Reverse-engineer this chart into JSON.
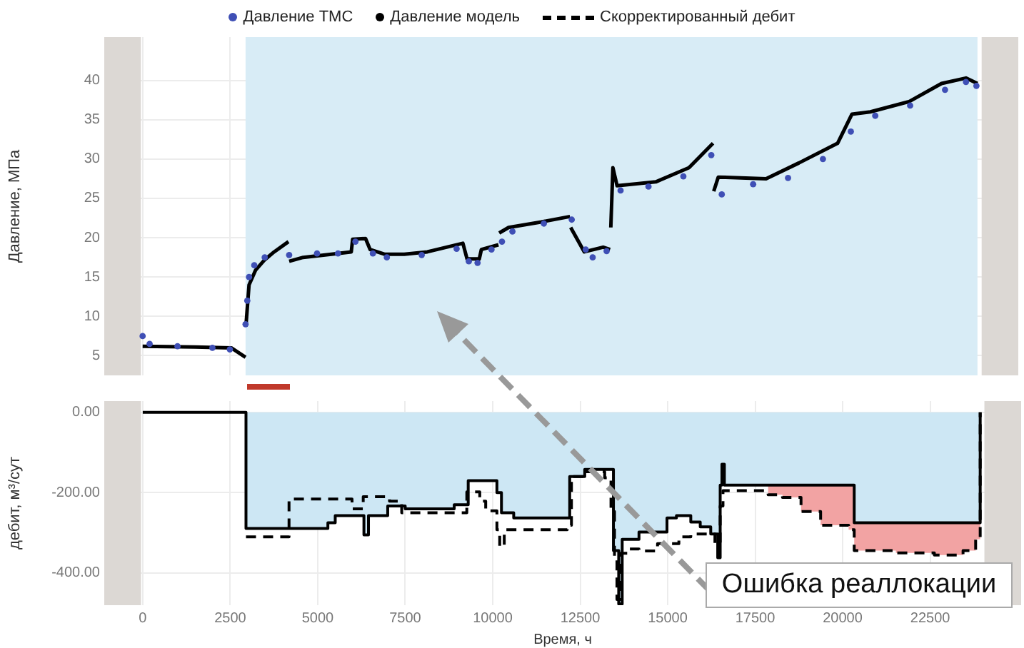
{
  "chart_data": [
    {
      "type": "line",
      "ylabel": "Давление, МПа",
      "xlim": [
        -1100,
        25100
      ],
      "ylim": [
        2.5,
        45.5
      ],
      "xticks": [
        0,
        2500,
        5000,
        7500,
        10000,
        12500,
        15000,
        17500,
        20000,
        22500
      ],
      "yticks": [
        5,
        10,
        15,
        20,
        25,
        30,
        35,
        40
      ],
      "tick_labels": "y",
      "grid": true,
      "legend": "top",
      "bands": [
        {
          "axis": "x",
          "from": -1100,
          "to": -50,
          "color": "#dcd8d4"
        },
        {
          "axis": "x",
          "from": 2950,
          "to": 23930,
          "color": "#d8ecf6"
        },
        {
          "axis": "x",
          "from": 24050,
          "to": 25100,
          "color": "#dcd8d4"
        }
      ],
      "series": [
        {
          "name": "Давление ТМС",
          "type": "scatter",
          "marker": "circle",
          "color": "#3f4fb5",
          "x": [
            0,
            200,
            1000,
            2000,
            2500,
            2950,
            3000,
            3050,
            3200,
            3500,
            4200,
            5000,
            5600,
            6100,
            6600,
            7000,
            8000,
            9000,
            9350,
            9600,
            10000,
            10300,
            10600,
            11500,
            12300,
            12700,
            12900,
            13300,
            13700,
            14500,
            15500,
            16300,
            16600,
            17500,
            18500,
            19500,
            20300,
            21000,
            22000,
            23000,
            23600,
            23900
          ],
          "values": [
            7.5,
            6.5,
            6.2,
            6,
            5.8,
            9,
            12,
            15,
            16.5,
            17.5,
            17.8,
            18,
            18,
            19.5,
            18,
            17.5,
            17.8,
            18.6,
            17,
            16.8,
            18.5,
            19.5,
            20.8,
            21.8,
            22.3,
            18.5,
            17.5,
            18.3,
            26,
            26.5,
            27.8,
            30.5,
            25.5,
            26.8,
            27.6,
            30,
            33.5,
            35.5,
            36.8,
            38.8,
            39.8,
            39.3
          ]
        },
        {
          "name": "Давление модель",
          "marker": "none",
          "color": "#000000",
          "x": [
            0,
            1500,
            2540,
            2950,
            2955,
            2960,
            3050,
            3240,
            3500,
            3770,
            4180,
            4190,
            4200,
            4600,
            5410,
            5980,
            6020,
            6390,
            6520,
            6930,
            7500,
            8160,
            9180,
            9300,
            9650,
            9710,
            10200,
            10210,
            10220,
            10490,
            11430,
            12250,
            12260,
            12270,
            12660,
            13200,
            13400,
            13410,
            13420,
            13480,
            13600,
            14710,
            15660,
            16350,
            16360,
            16370,
            16500,
            17870,
            18810,
            19920,
            20330,
            20860,
            21970,
            22900,
            23600,
            23930
          ],
          "values": [
            6.2,
            6.1,
            6,
            4.8,
            null,
            8.7,
            14,
            15.9,
            17.2,
            18.2,
            19.5,
            null,
            17,
            17.5,
            17.9,
            18.2,
            19.8,
            19.9,
            18.5,
            17.9,
            17.9,
            18.2,
            19.3,
            17.3,
            17.3,
            18.5,
            19.1,
            null,
            20.6,
            21.3,
            22,
            22.7,
            null,
            21.3,
            18.2,
            18.8,
            18.5,
            null,
            21.3,
            28.9,
            26.6,
            27.1,
            28.9,
            32,
            null,
            25.9,
            27.7,
            27.5,
            29.5,
            32,
            35.7,
            36,
            37.3,
            39.6,
            40.3,
            39.6
          ]
        }
      ]
    },
    {
      "type": "step",
      "xlabel": "Время, ч",
      "ylabel": "дебит, м³/сут",
      "xlim": [
        -1100,
        25100
      ],
      "ylim": [
        -480,
        28
      ],
      "xticks": [
        0,
        2500,
        5000,
        7500,
        10000,
        12500,
        15000,
        17500,
        20000,
        22500
      ],
      "yticks": [
        {
          "value": -400,
          "label": "-400.00"
        },
        {
          "value": -200,
          "label": "-200.00"
        },
        {
          "value": 0,
          "label": "0.00"
        }
      ],
      "grid": true,
      "legend": "top",
      "annotations": [
        "Ошибка реаллокации"
      ],
      "bands": [
        {
          "axis": "x",
          "from": -1100,
          "to": -50,
          "color": "#dcd8d4"
        },
        {
          "axis": "x",
          "from": 24050,
          "to": 25100,
          "color": "#dcd8d4"
        }
      ],
      "series": [
        {
          "type": "area",
          "color": "#cde7f4",
          "x": [
            0,
            2950,
            5290,
            5500,
            6320,
            6450,
            7000,
            7500,
            8900,
            9300,
            10120,
            10250,
            10600,
            12200,
            12630,
            13450,
            13600,
            13700,
            14180,
            14980,
            15250,
            15660,
            15930,
            16230,
            16430,
            16500,
            16550,
            16620,
            20330,
            23930
          ],
          "values": [
            0,
            -289,
            -275,
            -257,
            -305,
            -257,
            -233,
            -240,
            -230,
            -170,
            -200,
            -250,
            -263,
            -160,
            -142,
            -344,
            -477,
            -316,
            -298,
            -263,
            -257,
            -273,
            -285,
            -303,
            -362,
            -181,
            -129,
            -181,
            -275,
            0
          ]
        },
        {
          "name": "Скорректированный дебит",
          "line_style": "dashed",
          "color": "#000000",
          "x": [
            2950,
            4180,
            5980,
            6300,
            7050,
            7400,
            9260,
            9630,
            9800,
            10120,
            10200,
            10330,
            12130,
            12250,
            12630,
            13200,
            13380,
            13480,
            13550,
            13650,
            13920,
            14180,
            14710,
            15320,
            15660,
            16350,
            16500,
            16580,
            17870,
            18280,
            18810,
            19370,
            20170,
            20330,
            21520,
            22620,
            23440,
            23800,
            23930
          ],
          "values": [
            -310,
            -216,
            -240,
            -210,
            -221,
            -250,
            -198,
            -221,
            -245,
            -292,
            -334,
            -292,
            -281,
            -160,
            -148,
            -163,
            -247,
            -362,
            -466,
            -351,
            -340,
            -345,
            -327,
            -310,
            -303,
            -327,
            -233,
            -195,
            -205,
            -212,
            -247,
            -281,
            -292,
            -344,
            -350,
            -355,
            -344,
            -316,
            0
          ],
          "lower": [
            null,
            null,
            null,
            null,
            null,
            null,
            null,
            null,
            null,
            null,
            null,
            null,
            null,
            null,
            null,
            null,
            null,
            null,
            null,
            null,
            null,
            null,
            null,
            null,
            null,
            null,
            null,
            null,
            -205,
            -212,
            -247,
            -281,
            -292,
            -344,
            -350,
            -355,
            -344,
            -316,
            0
          ],
          "upper": [
            null,
            null,
            null,
            null,
            null,
            null,
            null,
            null,
            null,
            null,
            null,
            null,
            null,
            null,
            null,
            null,
            null,
            null,
            null,
            null,
            null,
            null,
            null,
            null,
            null,
            null,
            null,
            null,
            -181,
            -181,
            -181,
            -181,
            -181,
            -275,
            -275,
            -275,
            -275,
            -275,
            -275
          ]
        }
      ]
    }
  ]
}
